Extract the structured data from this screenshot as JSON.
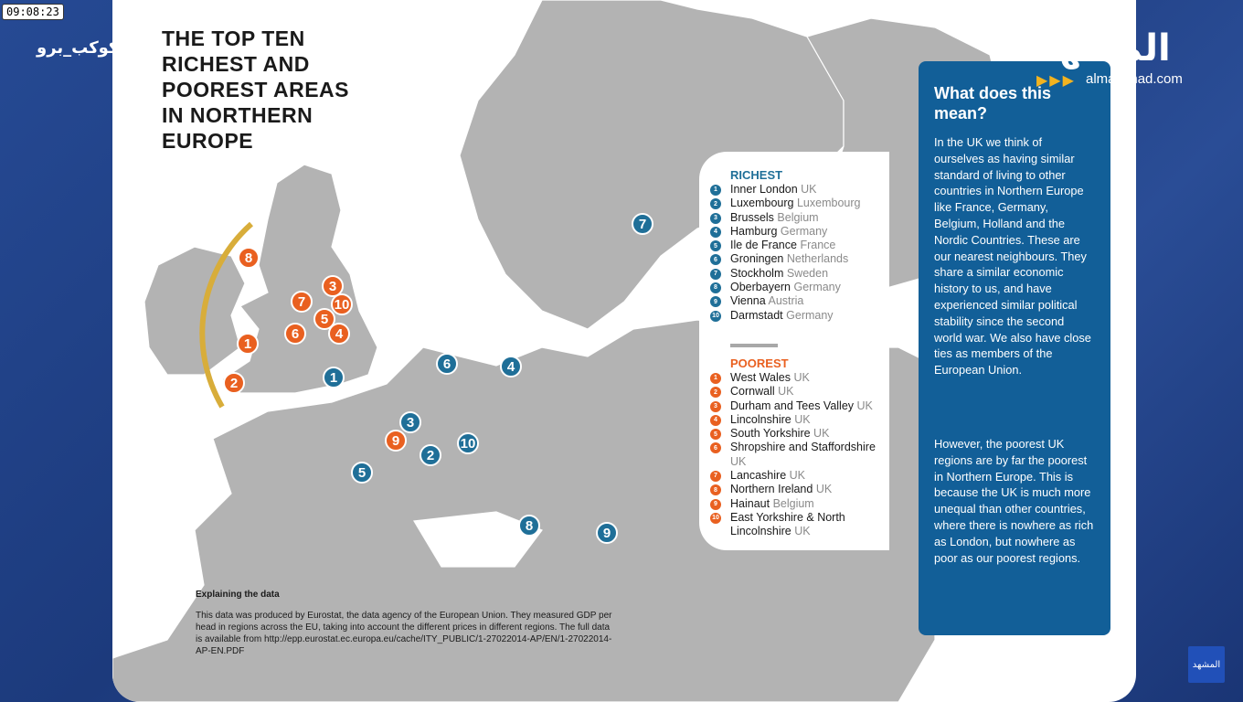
{
  "overlay": {
    "clock": "09:08:23",
    "channel_left": "الكوكب_برو",
    "brand_logo": "المشهد",
    "brand_arrows": "▶▶▶",
    "brand_url": "almashhad.com",
    "corner_badge": "المشهد"
  },
  "map": {
    "title": "THE TOP TEN\nRICHEST AND\nPOOREST AREAS\nIN NORTHERN\nEUROPE",
    "colors": {
      "rich": "#1f6f98",
      "poor": "#e96020",
      "land": "#b3b3b3",
      "arc": "#d8ad3a"
    },
    "markers": [
      {
        "label": "8",
        "type": "poor",
        "region": "Northern Ireland"
      },
      {
        "label": "3",
        "type": "poor",
        "region": "Durham and Tees Valley"
      },
      {
        "label": "7",
        "type": "poor",
        "region": "Lancashire"
      },
      {
        "label": "10",
        "type": "poor",
        "region": "East Yorkshire & North Lincolnshire"
      },
      {
        "label": "5",
        "type": "poor",
        "region": "South Yorkshire"
      },
      {
        "label": "6",
        "type": "poor",
        "region": "Shropshire and Staffordshire"
      },
      {
        "label": "4",
        "type": "poor",
        "region": "Lincolnshire"
      },
      {
        "label": "1",
        "type": "poor",
        "region": "West Wales"
      },
      {
        "label": "2",
        "type": "poor",
        "region": "Cornwall"
      },
      {
        "label": "1",
        "type": "rich",
        "region": "Inner London"
      },
      {
        "label": "6",
        "type": "rich",
        "region": "Groningen"
      },
      {
        "label": "4",
        "type": "rich",
        "region": "Hamburg"
      },
      {
        "label": "7",
        "type": "rich",
        "region": "Stockholm"
      },
      {
        "label": "3",
        "type": "rich",
        "region": "Brussels"
      },
      {
        "label": "9",
        "type": "poor",
        "region": "Hainaut"
      },
      {
        "label": "2",
        "type": "rich",
        "region": "Luxembourg"
      },
      {
        "label": "10",
        "type": "rich",
        "region": "Darmstadt"
      },
      {
        "label": "5",
        "type": "rich",
        "region": "Ile de France"
      },
      {
        "label": "8",
        "type": "rich",
        "region": "Oberbayern"
      },
      {
        "label": "9",
        "type": "rich",
        "region": "Vienna"
      }
    ]
  },
  "legend": {
    "richest_heading": "RICHEST",
    "richest": [
      {
        "num": "1",
        "place": "Inner London",
        "country": "UK"
      },
      {
        "num": "2",
        "place": "Luxembourg",
        "country": "Luxembourg"
      },
      {
        "num": "3",
        "place": "Brussels",
        "country": "Belgium"
      },
      {
        "num": "4",
        "place": "Hamburg",
        "country": "Germany"
      },
      {
        "num": "5",
        "place": "Ile de France",
        "country": "France"
      },
      {
        "num": "6",
        "place": "Groningen",
        "country": "Netherlands"
      },
      {
        "num": "7",
        "place": "Stockholm",
        "country": "Sweden"
      },
      {
        "num": "8",
        "place": "Oberbayern",
        "country": "Germany"
      },
      {
        "num": "9",
        "place": "Vienna",
        "country": "Austria"
      },
      {
        "num": "10",
        "place": "Darmstadt",
        "country": "Germany"
      }
    ],
    "poorest_heading": "POOREST",
    "poorest": [
      {
        "num": "1",
        "place": "West Wales",
        "country": "UK"
      },
      {
        "num": "2",
        "place": "Cornwall",
        "country": "UK"
      },
      {
        "num": "3",
        "place": "Durham and Tees Valley",
        "country": "UK"
      },
      {
        "num": "4",
        "place": "Lincolnshire",
        "country": "UK"
      },
      {
        "num": "5",
        "place": "South Yorkshire",
        "country": "UK"
      },
      {
        "num": "6",
        "place": "Shropshire and Staffordshire",
        "country": "UK"
      },
      {
        "num": "7",
        "place": "Lancashire",
        "country": "UK"
      },
      {
        "num": "8",
        "place": "Northern Ireland",
        "country": "UK"
      },
      {
        "num": "9",
        "place": "Hainaut",
        "country": "Belgium"
      },
      {
        "num": "10",
        "place": "East Yorkshire & North Lincolnshire",
        "country": "UK"
      }
    ]
  },
  "info": {
    "title": "What does this mean?",
    "paragraph1": "In the UK we think of ourselves as having similar standard of living to other countries in Northern Europe like France, Germany, Belgium, Holland and the Nordic Countries. These are our nearest neighbours. They share a similar economic history to us, and have experienced similar political stability since the second world war. We also have close ties as members of the European Union.",
    "paragraph2": "However, the poorest UK regions are by far the poorest in Northern Europe. This is because the UK is much more unequal than other countries, where there is nowhere as rich as London, but nowhere as poor as our poorest regions."
  },
  "explain": {
    "heading": "Explaining the data",
    "body": "This data was produced by Eurostat, the data agency of the European Union. They measured GDP per head in regions across the EU, taking into account the different prices in different regions. The full data is available from http://epp.eurostat.ec.europa.eu/cache/ITY_PUBLIC/1-27022014-AP/EN/1-27022014-AP-EN.PDF"
  }
}
